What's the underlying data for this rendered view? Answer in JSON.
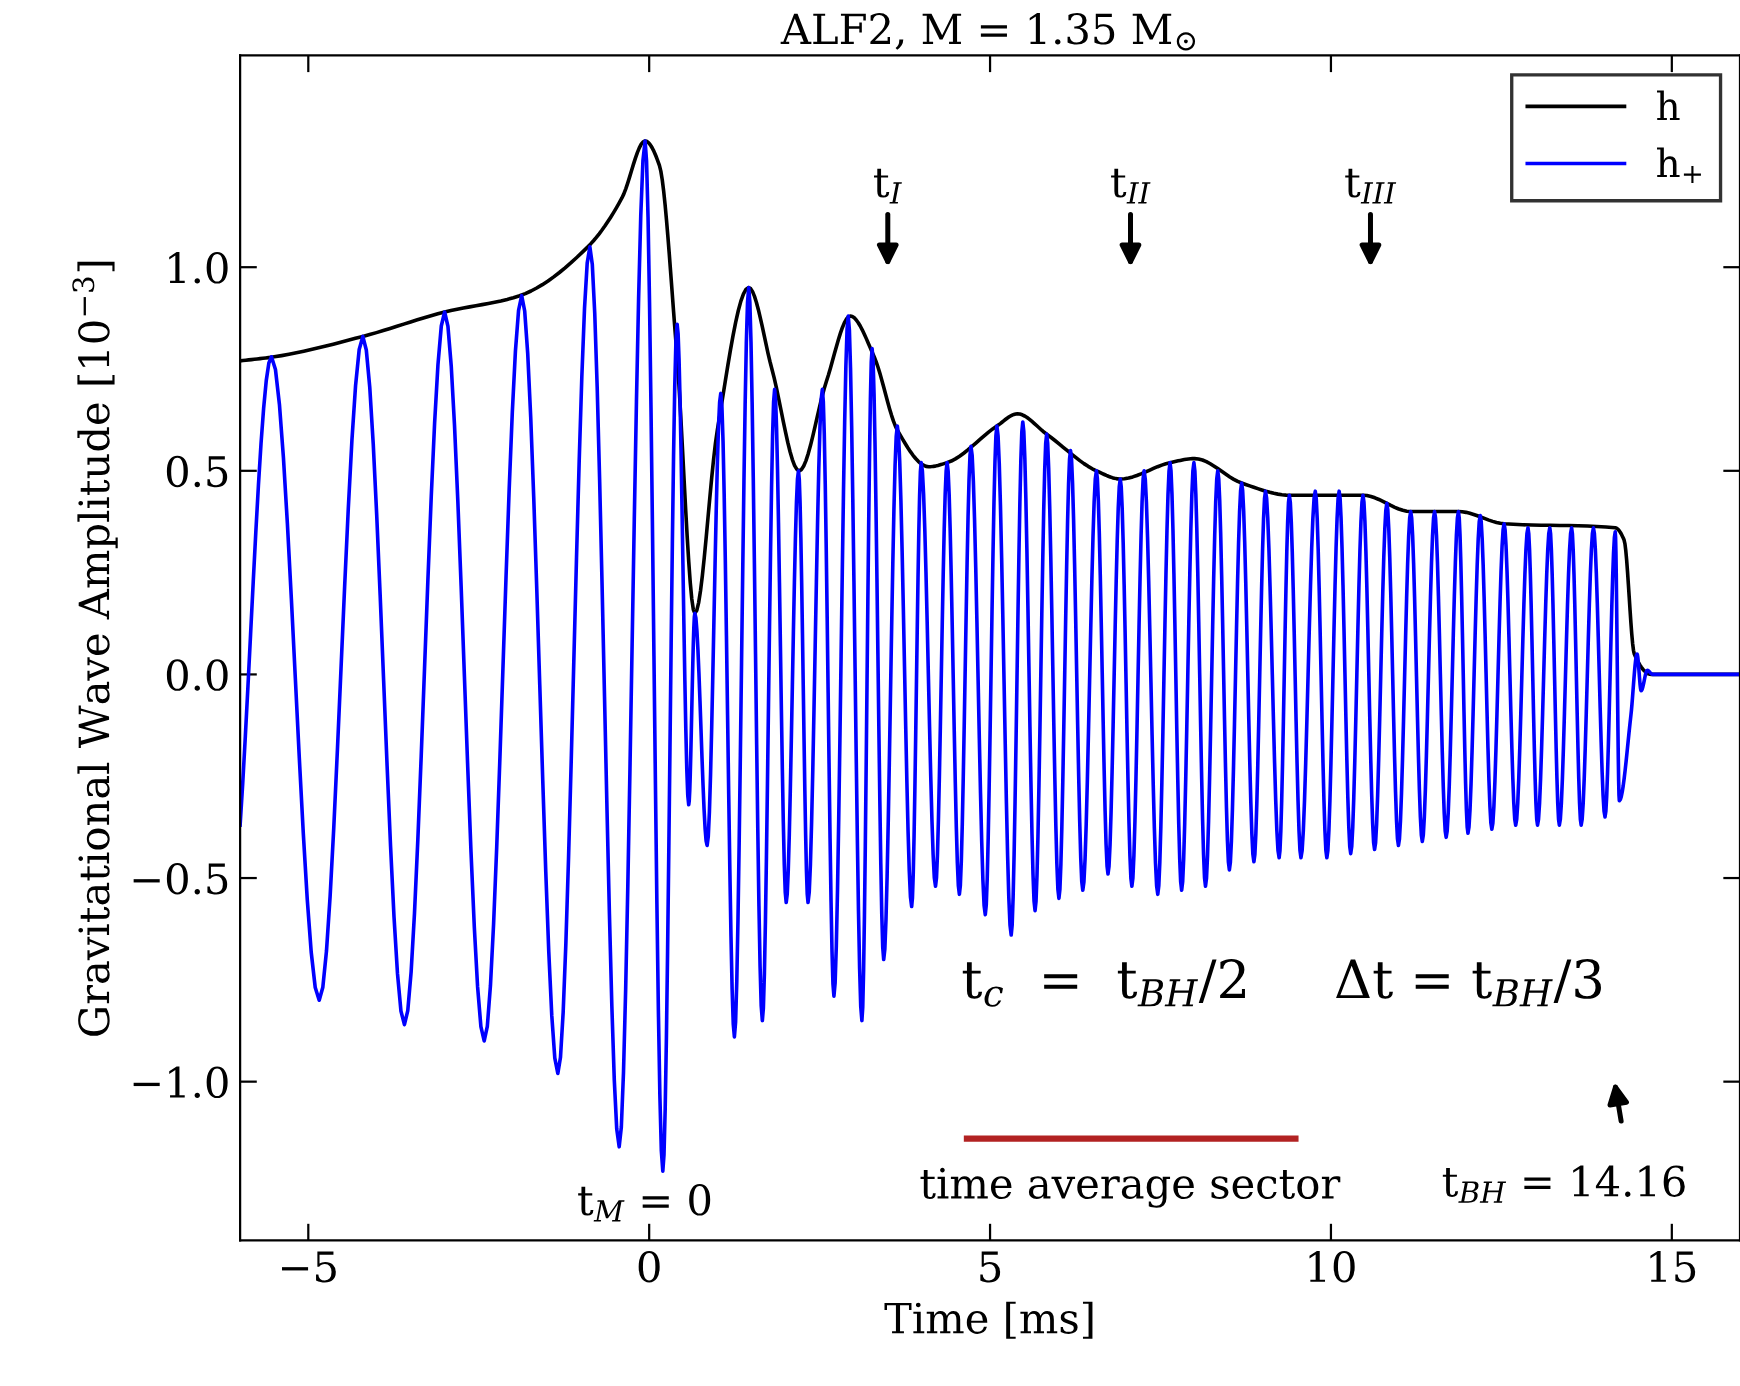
{
  "chart_data": {
    "type": "line",
    "title": "ALF2, M = 1.35 M$_{⊙}$",
    "xlabel": "Time [ms]",
    "ylabel": "Gravitational Wave Amplitude [10$^{−3}$]",
    "xlim": [
      -6,
      16
    ],
    "ylim": [
      -1.39,
      1.52
    ],
    "xticks": [
      {
        "value": -5,
        "label": "−5"
      },
      0,
      5,
      10,
      15
    ],
    "yticks": [
      {
        "value": -1.0,
        "label": "−1.0"
      },
      {
        "value": -0.5,
        "label": "−0.5"
      },
      {
        "value": 0.0,
        "label": "0.0"
      },
      {
        "value": 0.5,
        "label": "0.5"
      },
      {
        "value": 1.0,
        "label": "1.0"
      }
    ],
    "grid": false,
    "legend": "top right",
    "marker": "none",
    "line_style": "solid",
    "series": [
      {
        "name": "h",
        "color": "#000000",
        "x": [
          -6,
          -5.5,
          -4.2,
          -3,
          -1.9,
          -0.9,
          -0.4,
          -0.06,
          0.15,
          0.4,
          0.67,
          1.0,
          1.46,
          1.8,
          2.2,
          2.6,
          2.95,
          3.3,
          3.64,
          4.1,
          4.37,
          5.1,
          5.4,
          5.83,
          6.56,
          6.91,
          7.64,
          8.0,
          8.69,
          9.4,
          10.47,
          11.17,
          11.87,
          12.54,
          14.17,
          14.3,
          14.45,
          14.7,
          16
        ],
        "values": [
          0.77,
          0.78,
          0.83,
          0.89,
          0.93,
          1.05,
          1.17,
          1.31,
          1.25,
          0.8,
          0.15,
          0.6,
          0.95,
          0.75,
          0.5,
          0.72,
          0.88,
          0.78,
          0.6,
          0.51,
          0.52,
          0.61,
          0.64,
          0.59,
          0.5,
          0.48,
          0.52,
          0.53,
          0.47,
          0.44,
          0.44,
          0.4,
          0.4,
          0.37,
          0.36,
          0.33,
          0.05,
          0.0,
          0.0
        ]
      },
      {
        "name": "h$_{+}$",
        "color": "#0000ff",
        "x": [
          -6,
          -5.54,
          -4.84,
          -4.2,
          -3.59,
          -3.0,
          -2.42,
          -1.87,
          -1.34,
          -0.87,
          -0.44,
          -0.06,
          0.2,
          0.41,
          0.58,
          0.67,
          0.85,
          1.05,
          1.25,
          1.46,
          1.66,
          1.84,
          2.01,
          2.19,
          2.33,
          2.54,
          2.71,
          2.92,
          3.12,
          3.27,
          3.44,
          3.64,
          3.85,
          3.99,
          4.2,
          4.37,
          4.55,
          4.72,
          4.93,
          5.1,
          5.31,
          5.48,
          5.66,
          5.83,
          6.01,
          6.18,
          6.36,
          6.56,
          6.73,
          6.91,
          7.08,
          7.26,
          7.46,
          7.64,
          7.81,
          7.99,
          8.16,
          8.34,
          8.51,
          8.69,
          8.87,
          9.04,
          9.24,
          9.39,
          9.56,
          9.77,
          9.94,
          10.12,
          10.29,
          10.47,
          10.64,
          10.82,
          10.99,
          11.17,
          11.34,
          11.52,
          11.69,
          11.87,
          12.01,
          12.19,
          12.36,
          12.54,
          12.71,
          12.89,
          13.03,
          13.21,
          13.35,
          13.53,
          13.67,
          13.85,
          14.02,
          14.17,
          14.23,
          14.4,
          14.49,
          14.55,
          14.64,
          14.72,
          16
        ],
        "values": [
          -0.37,
          0.78,
          -0.8,
          0.83,
          -0.86,
          0.89,
          -0.9,
          0.93,
          -0.98,
          1.05,
          -1.16,
          1.31,
          -1.22,
          0.86,
          -0.32,
          0.15,
          -0.42,
          0.69,
          -0.89,
          0.95,
          -0.85,
          0.7,
          -0.56,
          0.5,
          -0.56,
          0.7,
          -0.79,
          0.88,
          -0.85,
          0.8,
          -0.7,
          0.61,
          -0.57,
          0.52,
          -0.52,
          0.52,
          -0.54,
          0.56,
          -0.59,
          0.61,
          -0.64,
          0.62,
          -0.58,
          0.59,
          -0.55,
          0.55,
          -0.53,
          0.5,
          -0.49,
          0.48,
          -0.52,
          0.5,
          -0.54,
          0.52,
          -0.53,
          0.52,
          -0.52,
          0.5,
          -0.48,
          0.47,
          -0.46,
          0.45,
          -0.45,
          0.44,
          -0.45,
          0.45,
          -0.45,
          0.45,
          -0.44,
          0.44,
          -0.43,
          0.42,
          -0.42,
          0.4,
          -0.41,
          0.4,
          -0.4,
          0.4,
          -0.39,
          0.39,
          -0.38,
          0.37,
          -0.37,
          0.36,
          -0.37,
          0.36,
          -0.37,
          0.36,
          -0.37,
          0.36,
          -0.35,
          0.35,
          -0.31,
          -0.1,
          0.05,
          -0.04,
          0.01,
          0.0,
          0.0
        ]
      },
      {
        "color": "#b22222",
        "x": [
          4.66,
          9.48
        ],
        "values": [
          -1.14,
          -1.14
        ]
      }
    ],
    "annotations": [
      "t$_{I}$",
      "t$_{II}$",
      "t$_{III}$",
      "t$_{BH}$ = 14.16",
      "t$_{M}$ = 0",
      "t$_{c}$  =  t$_{BH}$/2     Δt = t$_{BH}$/3",
      "time average sector"
    ]
  }
}
